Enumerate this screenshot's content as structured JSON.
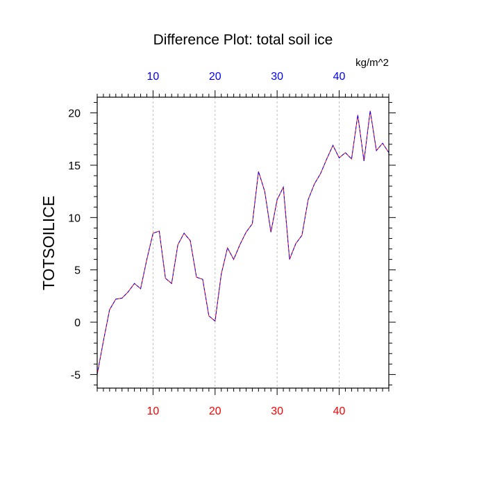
{
  "chart_data": {
    "type": "line",
    "title": "Difference Plot: total soil ice",
    "units_label": "kg/m^2",
    "ylabel": "TOTSOILICE",
    "xlabel": "",
    "xlim": [
      1,
      48
    ],
    "ylim": [
      -6.3,
      21.5
    ],
    "grid": {
      "x": true,
      "y": false
    },
    "x_ticks": [
      10,
      20,
      30,
      40
    ],
    "y_ticks": [
      -5,
      0,
      5,
      10,
      15,
      20
    ],
    "x_ticks_bottom_color": "#ff0000",
    "x_ticks_top_color": "#0000ff",
    "series": [
      {
        "name": "",
        "colors": [
          "#ff0000",
          "#0000ff"
        ],
        "x": [
          1,
          2,
          3,
          4,
          5,
          6,
          7,
          8,
          9,
          10,
          11,
          12,
          13,
          14,
          15,
          16,
          17,
          18,
          19,
          20,
          21,
          22,
          23,
          24,
          25,
          26,
          27,
          28,
          29,
          30,
          31,
          32,
          33,
          34,
          35,
          36,
          37,
          38,
          39,
          40,
          41,
          42,
          43,
          44,
          45,
          46,
          47,
          48
        ],
        "values": [
          -5.0,
          -1.8,
          1.2,
          2.2,
          2.3,
          2.9,
          3.7,
          3.2,
          6.0,
          8.5,
          8.7,
          4.2,
          3.7,
          7.4,
          8.5,
          7.8,
          4.3,
          4.1,
          0.6,
          0.1,
          4.6,
          7.1,
          6.0,
          7.4,
          8.6,
          9.4,
          14.4,
          12.5,
          8.6,
          11.7,
          12.9,
          6.0,
          7.5,
          8.3,
          11.7,
          13.2,
          14.2,
          15.6,
          16.9,
          15.7,
          16.2,
          15.6,
          19.8,
          15.4,
          20.2,
          16.4,
          17.1,
          16.2
        ]
      }
    ]
  }
}
